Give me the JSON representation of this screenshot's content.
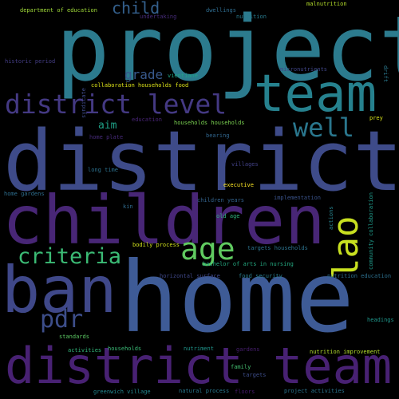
{
  "background": "#000000",
  "words": [
    {
      "text": "project",
      "color": "#2c7b8e"
    },
    {
      "text": "district",
      "color": "#3e4b89"
    },
    {
      "text": "home",
      "color": "#3e5b96"
    },
    {
      "text": "children",
      "color": "#482676"
    },
    {
      "text": "ban",
      "color": "#3f4889"
    },
    {
      "text": "district team",
      "color": "#482173"
    },
    {
      "text": "team",
      "color": "#26818e"
    },
    {
      "text": "district level",
      "color": "#443983"
    },
    {
      "text": "lao",
      "color": "#c8e020"
    },
    {
      "text": "criteria",
      "color": "#3bbb75"
    },
    {
      "text": "age",
      "color": "#60ca60"
    },
    {
      "text": "well",
      "color": "#2a778e"
    },
    {
      "text": "pdr",
      "color": "#3d4e8a"
    },
    {
      "text": "child",
      "color": "#34608d"
    },
    {
      "text": "grade",
      "color": "#38598c"
    },
    {
      "text": "aim",
      "color": "#1fa187"
    },
    {
      "text": "department of education",
      "color": "#a0da39"
    },
    {
      "text": "undertaking",
      "color": "#472c7a"
    },
    {
      "text": "dwellings",
      "color": "#2f6c8e"
    },
    {
      "text": "nutrition",
      "color": "#297b8e"
    },
    {
      "text": "malnutrition",
      "color": "#b5de2b"
    },
    {
      "text": "vientiane",
      "color": "#20a386"
    },
    {
      "text": "historic period",
      "color": "#433d84"
    },
    {
      "text": "micronutrients",
      "color": "#404688"
    },
    {
      "text": "drift",
      "color": "#2a788e"
    },
    {
      "text": "collaboration households food",
      "color": "#dde318"
    },
    {
      "text": "syndicate",
      "color": "#3e4a89"
    },
    {
      "text": "education",
      "color": "#482475"
    },
    {
      "text": "households households",
      "color": "#7ad151"
    },
    {
      "text": "prey",
      "color": "#d8e219"
    },
    {
      "text": "home plate",
      "color": "#472a7a"
    },
    {
      "text": "bearing",
      "color": "#31668e"
    },
    {
      "text": "long time",
      "color": "#2d718e"
    },
    {
      "text": "villages",
      "color": "#424186"
    },
    {
      "text": "executive",
      "color": "#fde725"
    },
    {
      "text": "home gardens",
      "color": "#2e6e8e"
    },
    {
      "text": "children years",
      "color": "#33638d"
    },
    {
      "text": "implementation",
      "color": "#3a538b"
    },
    {
      "text": "kin",
      "color": "#2f6b8e"
    },
    {
      "text": "old age",
      "color": "#2eb37c"
    },
    {
      "text": "actions",
      "color": "#26828e"
    },
    {
      "text": "community collaboration",
      "color": "#1f9a8a"
    },
    {
      "text": "bodily process",
      "color": "#d0e11c"
    },
    {
      "text": "targets households",
      "color": "#2c738e"
    },
    {
      "text": "bachelor of arts in nursing",
      "color": "#25ab82"
    },
    {
      "text": "horizontal surface",
      "color": "#3f4788"
    },
    {
      "text": "food security",
      "color": "#287d8e"
    },
    {
      "text": "nutrition education",
      "color": "#2d708e"
    },
    {
      "text": "headings",
      "color": "#1f968b"
    },
    {
      "text": "standards",
      "color": "#5cc863"
    },
    {
      "text": "activities",
      "color": "#32b67a"
    },
    {
      "text": "households",
      "color": "#3aba76"
    },
    {
      "text": "nutriment",
      "color": "#1f958b"
    },
    {
      "text": "gardens",
      "color": "#481f70"
    },
    {
      "text": "nutrition improvement",
      "color": "#b2dd2d"
    },
    {
      "text": "family",
      "color": "#44bf70"
    },
    {
      "text": "targets",
      "color": "#3d4d8a"
    },
    {
      "text": "greenwich village",
      "color": "#24878e"
    },
    {
      "text": "natural process",
      "color": "#2a788e"
    },
    {
      "text": "floors",
      "color": "#481b6d"
    },
    {
      "text": "project activities",
      "color": "#2b748e"
    }
  ]
}
